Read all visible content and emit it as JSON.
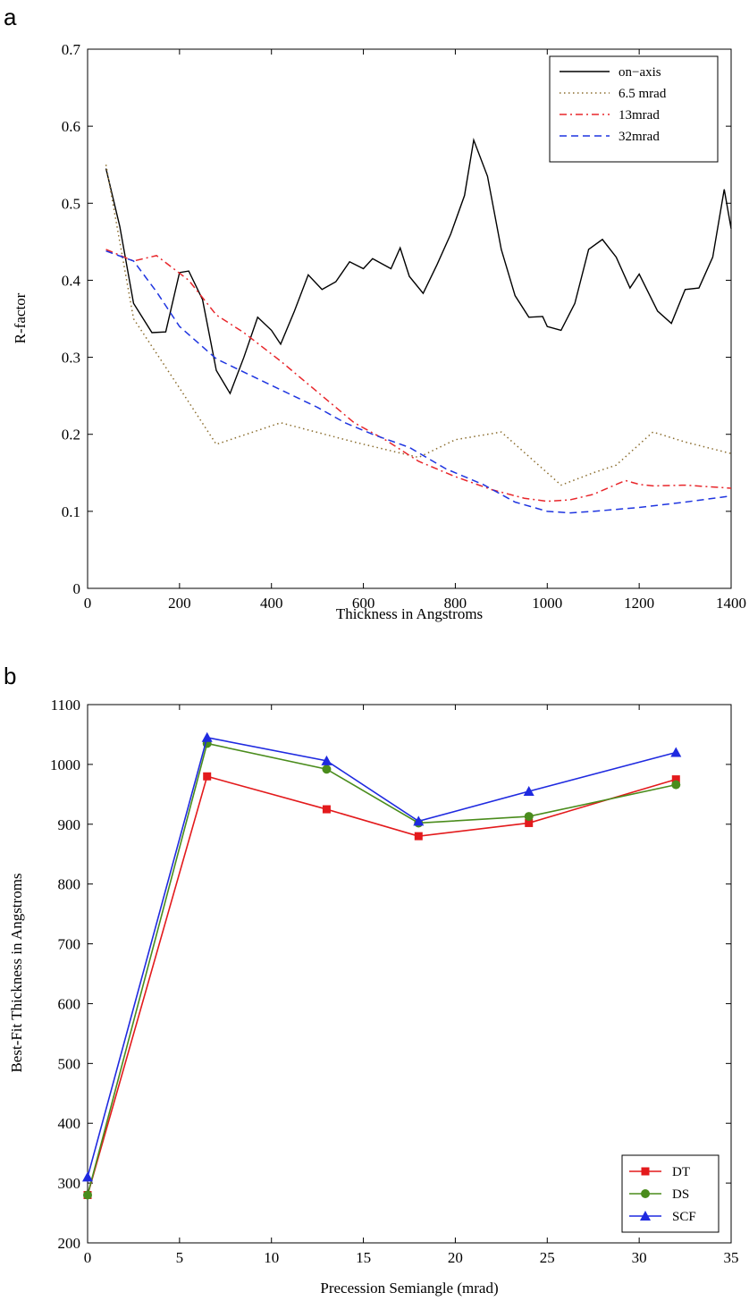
{
  "chart_data": [
    {
      "panel_label": "a",
      "type": "line",
      "xlabel": "Thickness in Angstroms",
      "ylabel": "R-factor",
      "xlim": [
        0,
        1400
      ],
      "ylim": [
        0,
        0.7
      ],
      "xticks": [
        "0",
        "200",
        "400",
        "600",
        "800",
        "1000",
        "1200",
        "1400"
      ],
      "yticks": [
        "0",
        "0.1",
        "0.2",
        "0.3",
        "0.4",
        "0.5",
        "0.6",
        "0.7"
      ],
      "legend_position": "top-right",
      "series": [
        {
          "name": "on−axis",
          "color": "#000000",
          "dash": "solid",
          "x": [
            40,
            70,
            100,
            140,
            170,
            200,
            220,
            250,
            280,
            310,
            340,
            370,
            400,
            420,
            450,
            480,
            510,
            540,
            570,
            600,
            620,
            660,
            680,
            700,
            730,
            760,
            790,
            820,
            840,
            870,
            900,
            930,
            960,
            990,
            1000,
            1030,
            1060,
            1090,
            1120,
            1150,
            1180,
            1200,
            1240,
            1270,
            1300,
            1330,
            1360,
            1385,
            1400
          ],
          "y": [
            0.545,
            0.47,
            0.37,
            0.332,
            0.333,
            0.41,
            0.412,
            0.375,
            0.283,
            0.253,
            0.3,
            0.352,
            0.335,
            0.317,
            0.36,
            0.407,
            0.388,
            0.398,
            0.424,
            0.415,
            0.428,
            0.415,
            0.442,
            0.405,
            0.383,
            0.42,
            0.46,
            0.51,
            0.582,
            0.535,
            0.44,
            0.38,
            0.352,
            0.353,
            0.34,
            0.335,
            0.37,
            0.44,
            0.453,
            0.43,
            0.39,
            0.408,
            0.36,
            0.344,
            0.388,
            0.39,
            0.43,
            0.518,
            0.467
          ]
        },
        {
          "name": "6.5 mrad",
          "color": "#8b6d2e",
          "dash": "dotted",
          "x": [
            40,
            100,
            200,
            280,
            420,
            580,
            720,
            800,
            900,
            1000,
            1030,
            1100,
            1150,
            1230,
            1300,
            1400
          ],
          "y": [
            0.55,
            0.35,
            0.26,
            0.187,
            0.215,
            0.19,
            0.17,
            0.193,
            0.203,
            0.15,
            0.134,
            0.15,
            0.16,
            0.203,
            0.19,
            0.175
          ]
        },
        {
          "name": "13mrad",
          "color": "#e8262b",
          "dash": "dashdot",
          "x": [
            40,
            100,
            150,
            220,
            280,
            340,
            420,
            500,
            580,
            650,
            720,
            800,
            880,
            950,
            1000,
            1050,
            1100,
            1170,
            1200,
            1230,
            1300,
            1400
          ],
          "y": [
            0.44,
            0.425,
            0.432,
            0.4,
            0.355,
            0.332,
            0.295,
            0.255,
            0.215,
            0.192,
            0.165,
            0.145,
            0.128,
            0.117,
            0.113,
            0.115,
            0.122,
            0.14,
            0.135,
            0.133,
            0.134,
            0.13
          ]
        },
        {
          "name": "32mrad",
          "color": "#1f35e0",
          "dash": "dashed",
          "x": [
            40,
            100,
            150,
            200,
            280,
            360,
            430,
            500,
            560,
            620,
            700,
            780,
            860,
            930,
            1000,
            1050,
            1100,
            1200,
            1300,
            1400
          ],
          "y": [
            0.438,
            0.425,
            0.385,
            0.34,
            0.298,
            0.275,
            0.255,
            0.235,
            0.215,
            0.2,
            0.183,
            0.155,
            0.135,
            0.112,
            0.1,
            0.098,
            0.1,
            0.105,
            0.112,
            0.12
          ]
        }
      ]
    },
    {
      "panel_label": "b",
      "type": "line",
      "xlabel": "Precession Semiangle (mrad)",
      "ylabel": "Best-Fit Thickness in Angstroms",
      "xlim": [
        0,
        35
      ],
      "ylim": [
        200,
        1100
      ],
      "xticks": [
        "0",
        "5",
        "10",
        "15",
        "20",
        "25",
        "30",
        "35"
      ],
      "yticks": [
        "200",
        "300",
        "400",
        "500",
        "600",
        "700",
        "800",
        "900",
        "1000",
        "1100"
      ],
      "legend_position": "bottom-right",
      "categories_x": [
        0,
        6.5,
        13,
        18,
        24,
        32
      ],
      "series": [
        {
          "name": "DT",
          "color": "#e31a1c",
          "marker": "square",
          "y": [
            280,
            980,
            925,
            880,
            902,
            975
          ]
        },
        {
          "name": "DS",
          "color": "#4a8c1c",
          "marker": "circle",
          "y": [
            280,
            1035,
            992,
            902,
            913,
            966
          ]
        },
        {
          "name": "SCF",
          "color": "#1f2ae0",
          "marker": "triangle",
          "y": [
            310,
            1045,
            1006,
            905,
            955,
            1020
          ]
        }
      ]
    }
  ]
}
